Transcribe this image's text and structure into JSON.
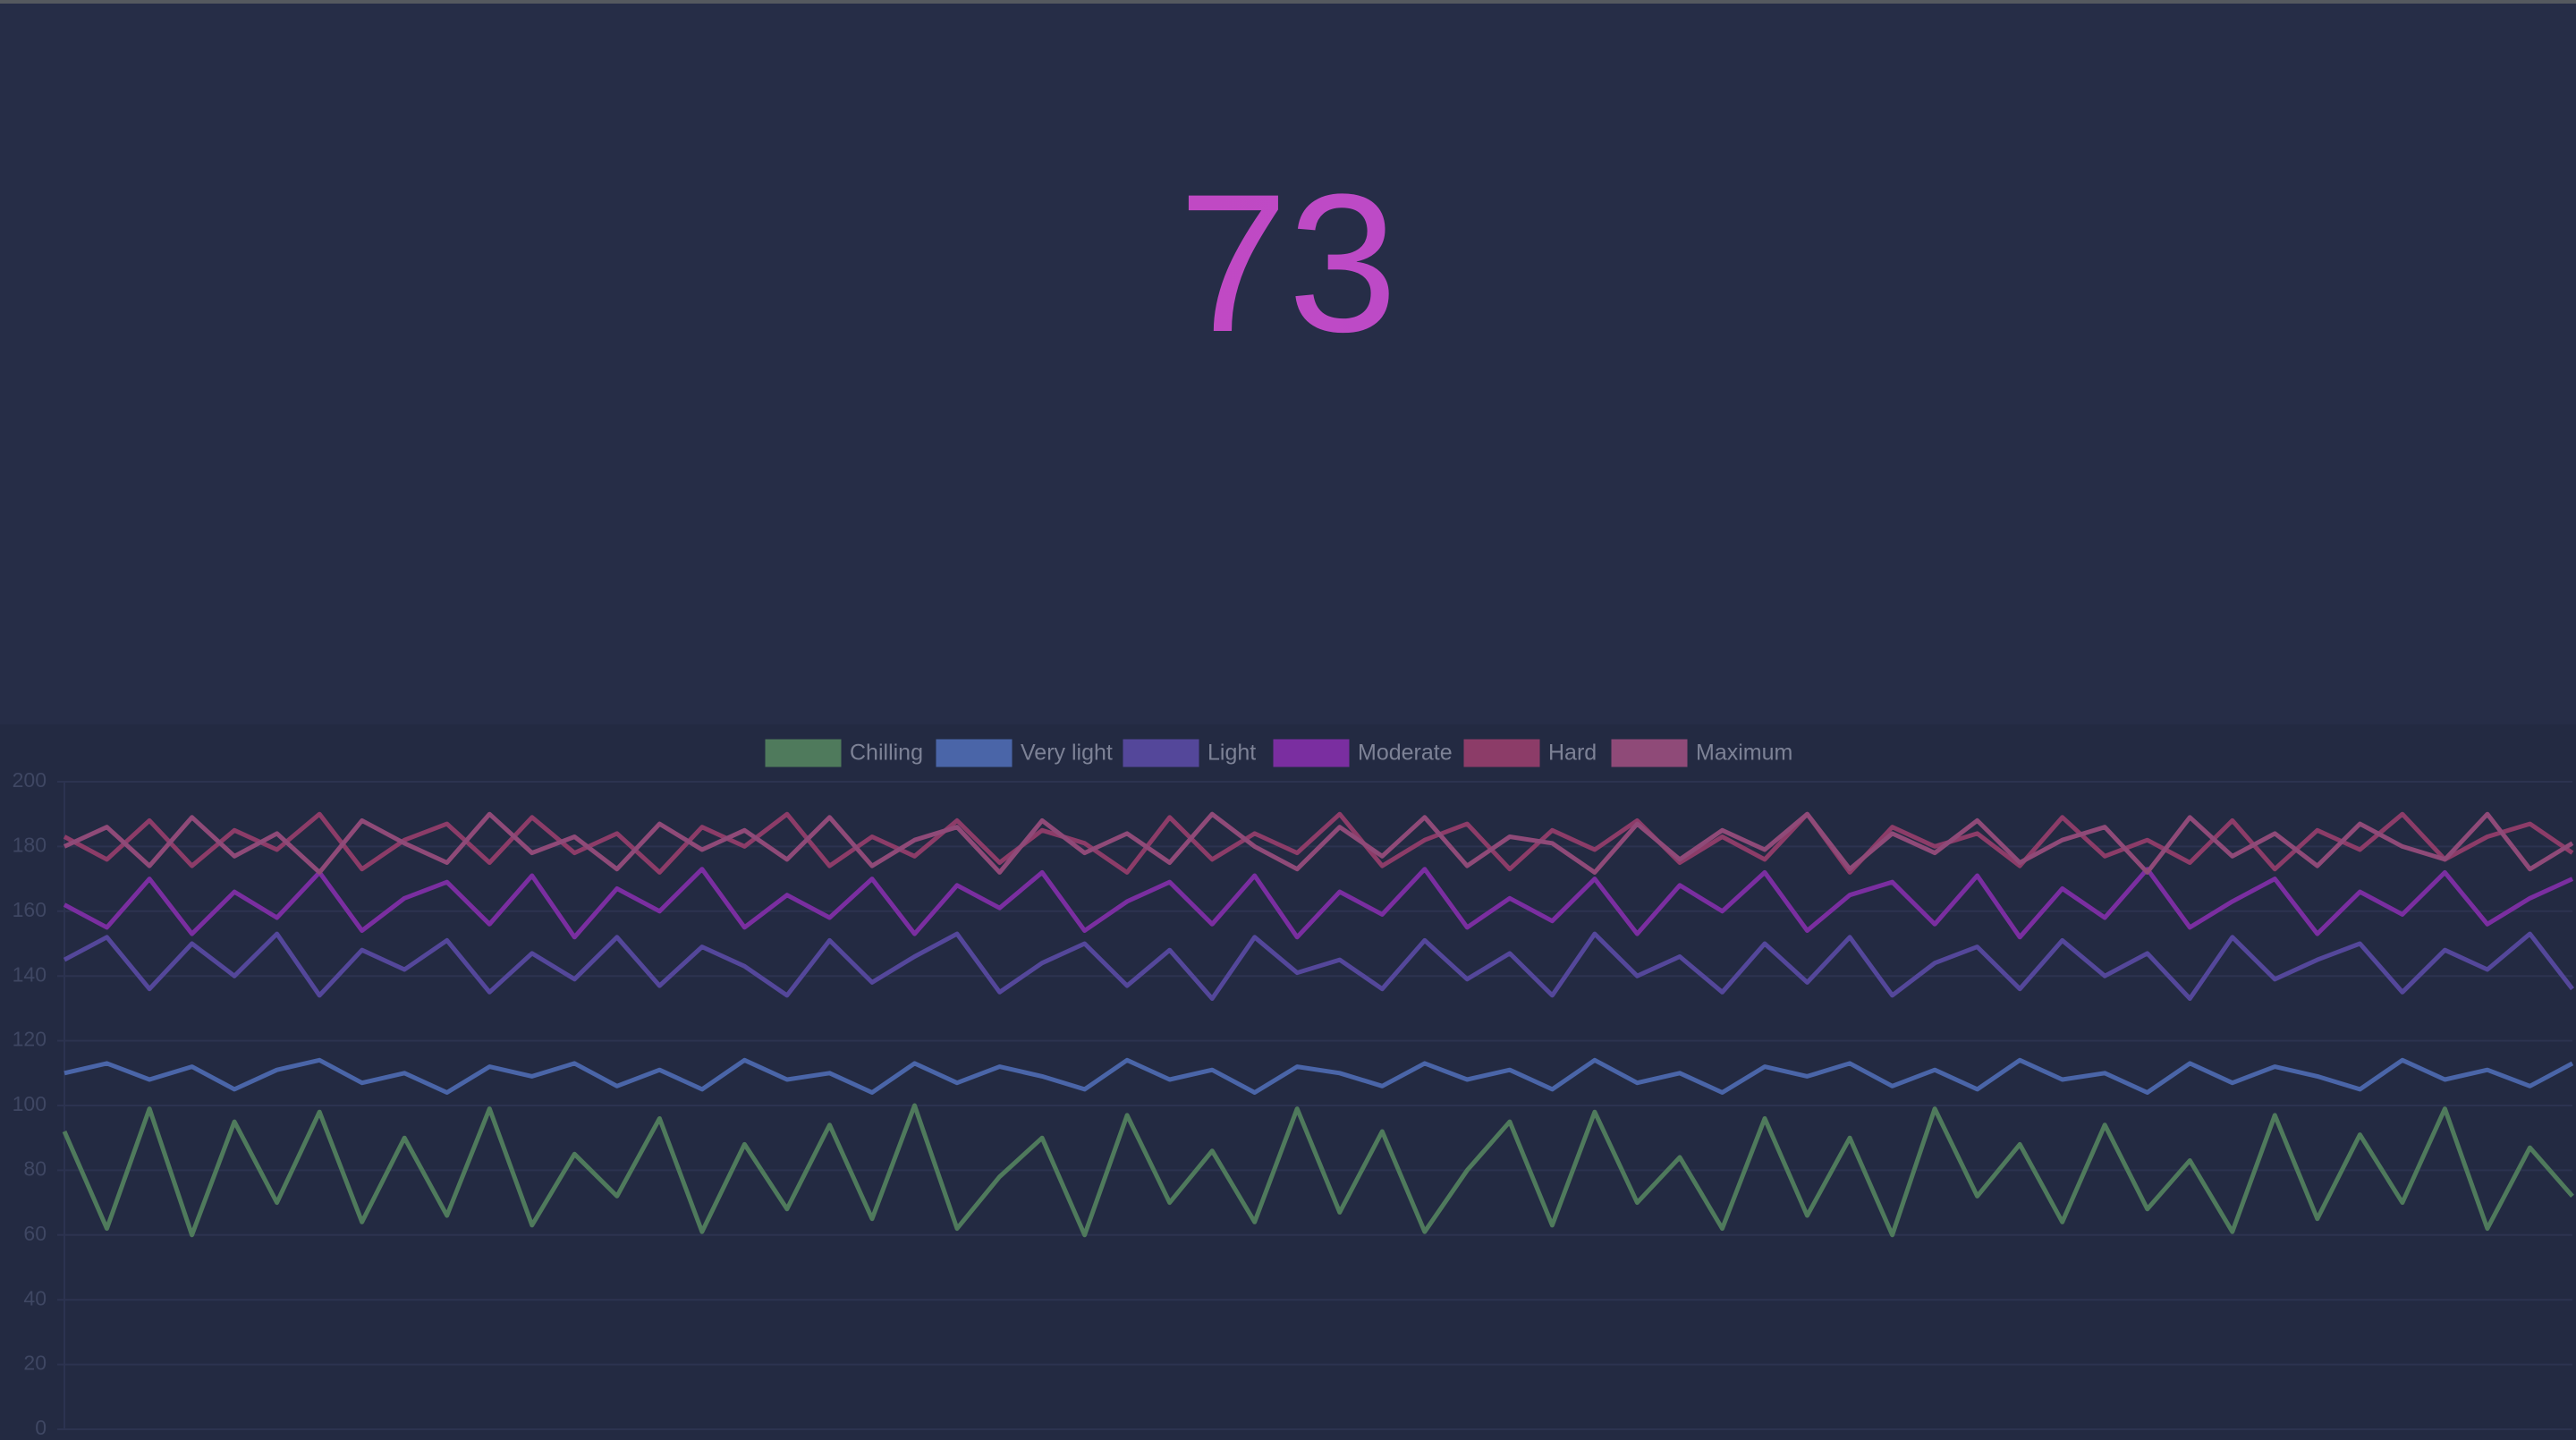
{
  "headline": "73",
  "chart_data": {
    "type": "line",
    "ylim": [
      0,
      200
    ],
    "yticks": [
      0,
      20,
      40,
      60,
      80,
      100,
      120,
      140,
      160,
      180,
      200
    ],
    "grid": true,
    "series": [
      {
        "name": "Chilling",
        "color": "#4f7a5c",
        "values": [
          92,
          62,
          99,
          60,
          95,
          70,
          98,
          64,
          90,
          66,
          99,
          63,
          85,
          72,
          96,
          61,
          88,
          68,
          94,
          65,
          100,
          62,
          78,
          90,
          60,
          97,
          70,
          86,
          64,
          99,
          67,
          92,
          61,
          80,
          95,
          63,
          98,
          70,
          84,
          62,
          96,
          66,
          90,
          60,
          99,
          72,
          88,
          64,
          94,
          68,
          83,
          61,
          97,
          65,
          91,
          70,
          99,
          62,
          87,
          72
        ]
      },
      {
        "name": "Very light",
        "color": "#4a65a8",
        "values": [
          110,
          113,
          108,
          112,
          105,
          111,
          114,
          107,
          110,
          104,
          112,
          109,
          113,
          106,
          111,
          105,
          114,
          108,
          110,
          104,
          113,
          107,
          112,
          109,
          105,
          114,
          108,
          111,
          104,
          112,
          110,
          106,
          113,
          108,
          111,
          105,
          114,
          107,
          110,
          104,
          112,
          109,
          113,
          106,
          111,
          105,
          114,
          108,
          110,
          104,
          113,
          107,
          112,
          109,
          105,
          114,
          108,
          111,
          106,
          113
        ]
      },
      {
        "name": "Light",
        "color": "#54479a",
        "values": [
          145,
          152,
          136,
          150,
          140,
          153,
          134,
          148,
          142,
          151,
          135,
          147,
          139,
          152,
          137,
          149,
          143,
          134,
          151,
          138,
          146,
          153,
          135,
          144,
          150,
          137,
          148,
          133,
          152,
          141,
          145,
          136,
          151,
          139,
          147,
          134,
          153,
          140,
          146,
          135,
          150,
          138,
          152,
          134,
          144,
          149,
          136,
          151,
          140,
          147,
          133,
          152,
          139,
          145,
          150,
          135,
          148,
          142,
          153,
          136
        ]
      },
      {
        "name": "Moderate",
        "color": "#7a2ea0",
        "values": [
          162,
          155,
          170,
          153,
          166,
          158,
          172,
          154,
          164,
          169,
          156,
          171,
          152,
          167,
          160,
          173,
          155,
          165,
          158,
          170,
          153,
          168,
          161,
          172,
          154,
          163,
          169,
          156,
          171,
          152,
          166,
          159,
          173,
          155,
          164,
          157,
          170,
          153,
          168,
          160,
          172,
          154,
          165,
          169,
          156,
          171,
          152,
          167,
          158,
          173,
          155,
          163,
          170,
          153,
          166,
          159,
          172,
          156,
          164,
          170
        ]
      },
      {
        "name": "Hard",
        "color": "#8c3c68",
        "values": [
          183,
          176,
          188,
          174,
          185,
          179,
          190,
          173,
          182,
          187,
          175,
          189,
          178,
          184,
          172,
          186,
          180,
          190,
          174,
          183,
          177,
          188,
          175,
          185,
          181,
          172,
          189,
          176,
          184,
          178,
          190,
          174,
          182,
          187,
          173,
          185,
          179,
          188,
          175,
          183,
          176,
          190,
          172,
          186,
          180,
          184,
          174,
          189,
          177,
          182,
          175,
          188,
          173,
          185,
          179,
          190,
          176,
          183,
          187,
          178
        ]
      },
      {
        "name": "Maximum",
        "color": "#8f4a78",
        "values": [
          180,
          186,
          174,
          189,
          177,
          184,
          172,
          188,
          181,
          175,
          190,
          178,
          183,
          173,
          187,
          179,
          185,
          176,
          189,
          174,
          182,
          186,
          172,
          188,
          178,
          184,
          175,
          190,
          180,
          173,
          186,
          177,
          189,
          174,
          183,
          181,
          172,
          187,
          176,
          185,
          179,
          190,
          173,
          184,
          178,
          188,
          175,
          182,
          186,
          172,
          189,
          177,
          184,
          174,
          187,
          180,
          176,
          190,
          173,
          181
        ]
      }
    ]
  }
}
